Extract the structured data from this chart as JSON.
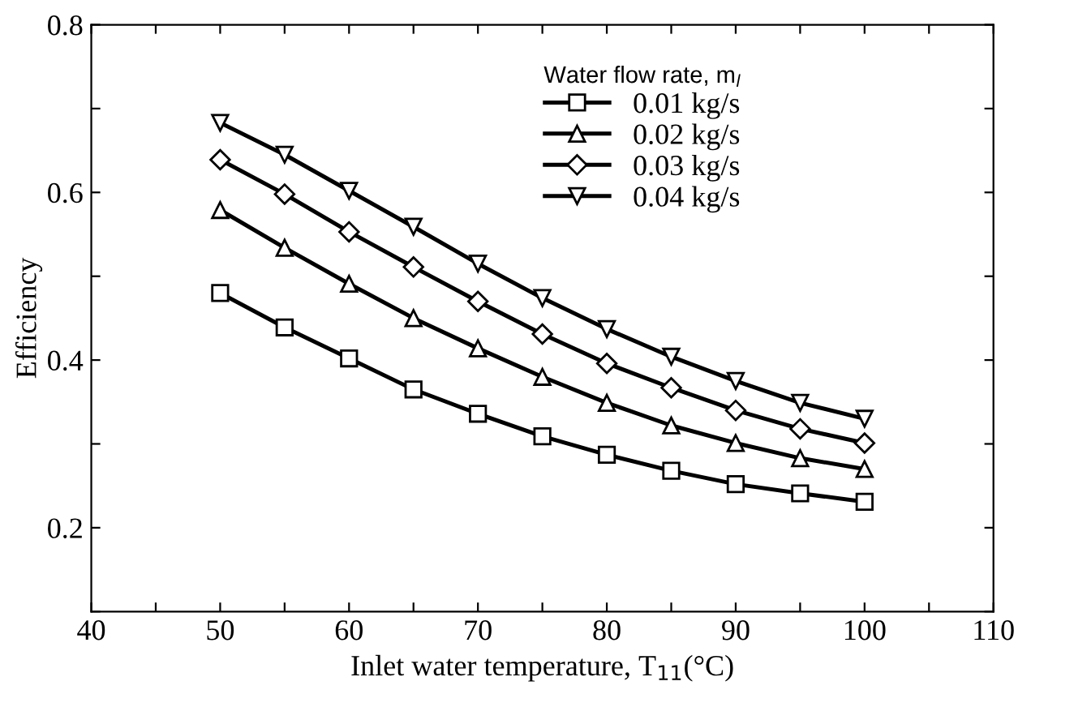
{
  "chart_data": {
    "type": "line",
    "xlabel": "Inlet water temperature, T$_{11}$(°C)",
    "ylabel": "Efficiency",
    "legend_title": "Water flow rate, m$_{l}$",
    "x": [
      50,
      55,
      60,
      65,
      70,
      75,
      80,
      85,
      90,
      95,
      100
    ],
    "series": [
      {
        "name": "0.01 kg/s",
        "color": "#000000",
        "marker": "square",
        "values": [
          0.48,
          0.439,
          0.402,
          0.365,
          0.336,
          0.309,
          0.287,
          0.268,
          0.252,
          0.241,
          0.231
        ]
      },
      {
        "name": "0.02 kg/s",
        "color": "#000000",
        "marker": "triangle",
        "values": [
          0.579,
          0.534,
          0.491,
          0.45,
          0.414,
          0.38,
          0.349,
          0.322,
          0.301,
          0.283,
          0.27
        ]
      },
      {
        "name": "0.03 kg/s",
        "color": "#000000",
        "marker": "diamond",
        "values": [
          0.639,
          0.598,
          0.553,
          0.511,
          0.47,
          0.431,
          0.396,
          0.367,
          0.34,
          0.318,
          0.301
        ]
      },
      {
        "name": "0.04 kg/s",
        "color": "#000000",
        "marker": "triangle_down",
        "values": [
          0.683,
          0.645,
          0.602,
          0.559,
          0.515,
          0.474,
          0.437,
          0.404,
          0.375,
          0.349,
          0.33
        ]
      }
    ],
    "xlim": [
      40,
      110
    ],
    "ylim": [
      0.1,
      0.8
    ],
    "xticks": [
      40,
      {
        "value": 45,
        "label": null
      },
      50,
      {
        "value": 55,
        "label": null
      },
      60,
      {
        "value": 65,
        "label": null
      },
      70,
      {
        "value": 75,
        "label": null
      },
      80,
      {
        "value": 85,
        "label": null
      },
      90,
      {
        "value": 95,
        "label": null
      },
      100,
      {
        "value": 105,
        "label": null
      },
      110
    ],
    "yticks": [
      {
        "value": 0.1,
        "label": null
      },
      0.2,
      {
        "value": 0.3,
        "label": null
      },
      0.4,
      {
        "value": 0.5,
        "label": null
      },
      0.6,
      {
        "value": 0.7,
        "label": null
      },
      0.8
    ],
    "grid": false,
    "legend": "top right",
    "line_style": "solid"
  }
}
